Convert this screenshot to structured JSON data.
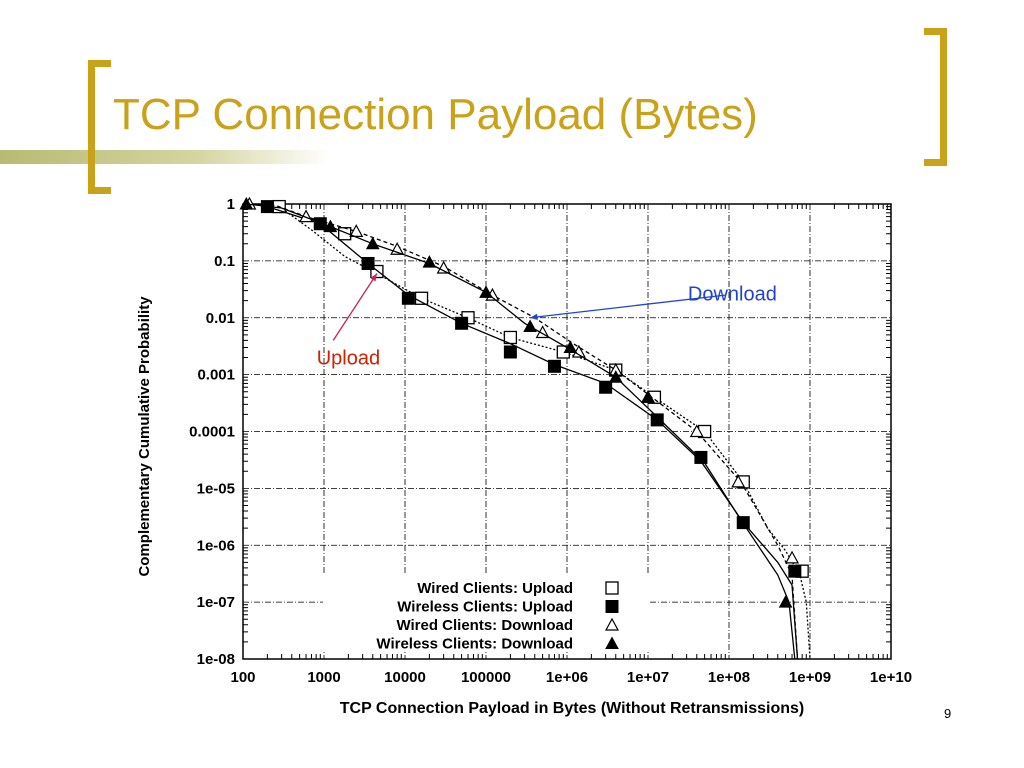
{
  "slide": {
    "title": "TCP Connection Payload (Bytes)",
    "page_number": "9",
    "accent_color": "#c9a21a"
  },
  "chart_data": {
    "type": "line",
    "xlabel": "TCP Connection Payload in Bytes (Without Retransmissions)",
    "ylabel": "Complementary Cumulative Probability",
    "x_scale": "log",
    "y_scale": "log",
    "xlim": [
      100,
      10000000000
    ],
    "ylim": [
      1e-08,
      1
    ],
    "x_ticks": [
      {
        "value": 100,
        "label": "100"
      },
      {
        "value": 1000,
        "label": "1000"
      },
      {
        "value": 10000,
        "label": "10000"
      },
      {
        "value": 100000,
        "label": "100000"
      },
      {
        "value": 1000000,
        "label": "1e+06"
      },
      {
        "value": 10000000,
        "label": "1e+07"
      },
      {
        "value": 100000000,
        "label": "1e+08"
      },
      {
        "value": 1000000000,
        "label": "1e+09"
      },
      {
        "value": 10000000000,
        "label": "1e+10"
      }
    ],
    "y_ticks": [
      {
        "value": 1,
        "label": "1"
      },
      {
        "value": 0.1,
        "label": "0.1"
      },
      {
        "value": 0.01,
        "label": "0.01"
      },
      {
        "value": 0.001,
        "label": "0.001"
      },
      {
        "value": 0.0001,
        "label": "0.0001"
      },
      {
        "value": 1e-05,
        "label": "1e-05"
      },
      {
        "value": 1e-06,
        "label": "1e-06"
      },
      {
        "value": 1e-07,
        "label": "1e-07"
      },
      {
        "value": 1e-08,
        "label": "1e-08"
      }
    ],
    "grid": true,
    "legend_position": "bottom-right",
    "series": [
      {
        "name": "Wired Clients: Upload",
        "marker": "square-open",
        "dash": "2,2",
        "x": [
          140,
          280,
          700,
          1800,
          4500,
          16000,
          60000,
          200000,
          900000,
          4000000,
          12000000,
          50000000,
          150000000,
          300000000,
          500000000,
          750000000,
          900000000,
          1000000000
        ],
        "y": [
          1,
          0.9,
          0.35,
          0.12,
          0.06,
          0.022,
          0.01,
          0.0045,
          0.0025,
          0.0012,
          0.0004,
          0.0001,
          1.3e-05,
          2e-06,
          8e-07,
          3e-07,
          1e-07,
          1e-08
        ],
        "markers_x": [
          280,
          1800,
          4500,
          16000,
          60000,
          200000,
          900000,
          4000000,
          12000000,
          50000000,
          150000000,
          800000000
        ],
        "markers_y": [
          0.9,
          0.3,
          0.065,
          0.022,
          0.01,
          0.0045,
          0.0025,
          0.0012,
          0.0004,
          0.0001,
          1.3e-05,
          3.5e-07
        ]
      },
      {
        "name": "Wireless Clients: Upload",
        "marker": "square-filled",
        "dash": "",
        "x": [
          140,
          200,
          900,
          3500,
          11000,
          50000,
          200000,
          700000,
          3000000,
          13000000,
          45000000,
          150000000,
          400000000,
          600000000,
          700000000
        ],
        "y": [
          1,
          0.9,
          0.45,
          0.09,
          0.025,
          0.008,
          0.0035,
          0.0015,
          0.0007,
          0.00016,
          3e-05,
          2.5e-06,
          5e-07,
          2e-07,
          1e-08
        ],
        "markers_x": [
          200,
          900,
          3500,
          11000,
          50000,
          200000,
          700000,
          3000000,
          13000000,
          45000000,
          150000000,
          650000000
        ],
        "markers_y": [
          0.9,
          0.45,
          0.09,
          0.022,
          0.008,
          0.0025,
          0.0014,
          0.0006,
          0.00016,
          3.5e-05,
          2.5e-06,
          3.5e-07
        ]
      },
      {
        "name": "Wired Clients: Download",
        "marker": "triangle-open",
        "dash": "4,3",
        "x": [
          120,
          250,
          600,
          2500,
          8000,
          30000,
          120000,
          400000,
          1200000,
          4000000,
          10000000,
          40000000,
          140000000,
          400000000,
          600000000,
          700000000
        ],
        "y": [
          1,
          0.95,
          0.6,
          0.33,
          0.18,
          0.08,
          0.025,
          0.01,
          0.0035,
          0.0012,
          0.00045,
          0.0001,
          1.3e-05,
          1e-06,
          3e-07,
          1e-08
        ],
        "markers_x": [
          120,
          600,
          2500,
          8000,
          30000,
          120000,
          500000,
          1400000,
          4000000,
          10000000,
          40000000,
          130000000,
          600000000
        ],
        "markers_y": [
          1,
          0.6,
          0.33,
          0.16,
          0.075,
          0.025,
          0.0055,
          0.0025,
          0.0012,
          0.0004,
          0.0001,
          1.3e-05,
          6e-07
        ]
      },
      {
        "name": "Wireless Clients: Download",
        "marker": "triangle-filled",
        "dash": "",
        "x": [
          110,
          300,
          1200,
          4000,
          20000,
          100000,
          300000,
          1000000,
          4000000,
          13000000,
          50000000,
          140000000,
          400000000,
          550000000,
          650000000
        ],
        "y": [
          1,
          0.85,
          0.4,
          0.2,
          0.09,
          0.028,
          0.008,
          0.003,
          0.0009,
          0.00018,
          2.8e-05,
          2.8e-06,
          3e-07,
          1e-07,
          1e-08
        ],
        "markers_x": [
          110,
          1200,
          4000,
          20000,
          100000,
          350000,
          1100000,
          4000000,
          10000000,
          500000000
        ],
        "markers_y": [
          1,
          0.4,
          0.2,
          0.095,
          0.028,
          0.007,
          0.003,
          0.0009,
          0.0004,
          1e-07
        ]
      }
    ],
    "annotations": [
      {
        "text": "Upload",
        "color": "#cc2200",
        "arrow_color": "#cc2255",
        "label_x": 2000,
        "label_y": 0.0015,
        "arrow_from_x": 1300,
        "arrow_from_y": 0.004,
        "arrow_to_x": 4500,
        "arrow_to_y": 0.06
      },
      {
        "text": "Download",
        "color": "#2244cc",
        "arrow_color": "#2244cc",
        "label_x": 110000000,
        "label_y": 0.02,
        "arrow_from_x": 90000000,
        "arrow_from_y": 0.025,
        "arrow_to_x": 350000,
        "arrow_to_y": 0.01
      }
    ]
  }
}
